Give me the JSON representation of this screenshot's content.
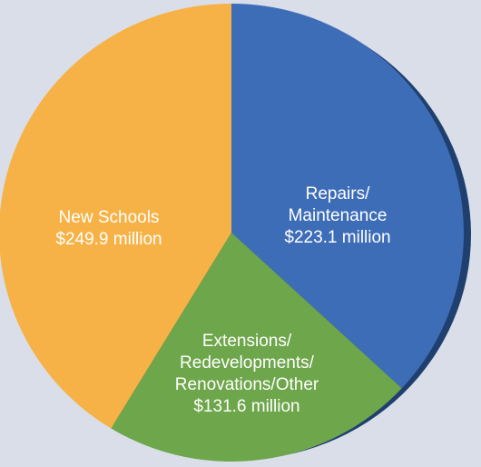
{
  "chart_data": {
    "type": "pie",
    "categories": [
      "Repairs/\nMaintenance",
      "Extensions/\nRedevelopments/\nRenovations/Other",
      "New Schools"
    ],
    "values": [
      223.1,
      131.6,
      249.9
    ],
    "value_labels": [
      "$223.1 million",
      "$131.6 million",
      "$249.9 million"
    ],
    "colors": [
      "#3e6db8",
      "#6ea64b",
      "#f6b246"
    ]
  }
}
